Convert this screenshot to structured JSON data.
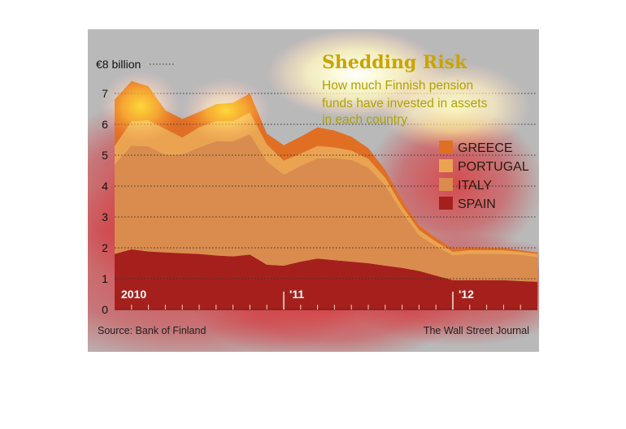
{
  "chart_data": {
    "type": "area",
    "stacked": true,
    "title": "Shedding Risk",
    "subtitle_lines": [
      "How much Finnish pension",
      "funds have invested in assets",
      "in each country"
    ],
    "y_unit_label": "€8 billion",
    "y_ticks": [
      "0",
      "1",
      "2",
      "3",
      "4",
      "5",
      "6",
      "7"
    ],
    "ylim": [
      0,
      8
    ],
    "grid": "dotted horizontal",
    "legend_placement": "right",
    "x_labels": [
      "2010",
      "'11",
      "'12"
    ],
    "x_label_positions": [
      0,
      10,
      20
    ],
    "x": [
      0,
      1,
      2,
      3,
      4,
      5,
      6,
      7,
      8,
      9,
      10,
      11,
      12,
      13,
      14,
      15,
      16,
      17,
      18,
      19,
      20,
      21,
      22,
      23,
      24,
      25
    ],
    "series": [
      {
        "name": "SPAIN",
        "color": "#a5201c",
        "values": [
          1.8,
          1.95,
          1.88,
          1.85,
          1.82,
          1.8,
          1.75,
          1.72,
          1.78,
          1.45,
          1.42,
          1.55,
          1.65,
          1.6,
          1.55,
          1.5,
          1.42,
          1.35,
          1.25,
          1.1,
          0.95,
          0.95,
          0.95,
          0.95,
          0.92,
          0.9
        ]
      },
      {
        "name": "ITALY",
        "color": "#d98c4e",
        "values": [
          2.9,
          3.35,
          3.4,
          3.15,
          3.2,
          3.45,
          3.7,
          3.73,
          3.9,
          3.35,
          2.95,
          3.1,
          3.25,
          3.3,
          3.3,
          3.1,
          2.6,
          1.8,
          1.15,
          0.95,
          0.8,
          0.85,
          0.85,
          0.85,
          0.85,
          0.8
        ]
      },
      {
        "name": "PORTUGAL",
        "color": "#eaa451",
        "values": [
          0.6,
          0.8,
          0.85,
          0.85,
          0.55,
          0.65,
          0.65,
          0.65,
          0.7,
          0.55,
          0.45,
          0.4,
          0.4,
          0.35,
          0.3,
          0.28,
          0.25,
          0.2,
          0.18,
          0.15,
          0.12,
          0.12,
          0.12,
          0.12,
          0.1,
          0.1
        ]
      },
      {
        "name": "GREECE",
        "color": "#e06f24",
        "values": [
          1.5,
          1.3,
          1.1,
          0.6,
          0.6,
          0.5,
          0.55,
          0.6,
          0.62,
          0.35,
          0.5,
          0.55,
          0.6,
          0.55,
          0.45,
          0.35,
          0.25,
          0.2,
          0.15,
          0.12,
          0.1,
          0.1,
          0.08,
          0.08,
          0.05,
          0.05
        ]
      }
    ],
    "legend_order": [
      "GREECE",
      "PORTUGAL",
      "ITALY",
      "SPAIN"
    ]
  },
  "footer": {
    "source": "Source: Bank of Finland",
    "publisher": "The Wall Street Journal"
  },
  "colors": {
    "panel_background": "#b9b9b9",
    "grid": "#333333",
    "heat_red": "#d8242a",
    "heat_yellow": "#ffef3a"
  }
}
